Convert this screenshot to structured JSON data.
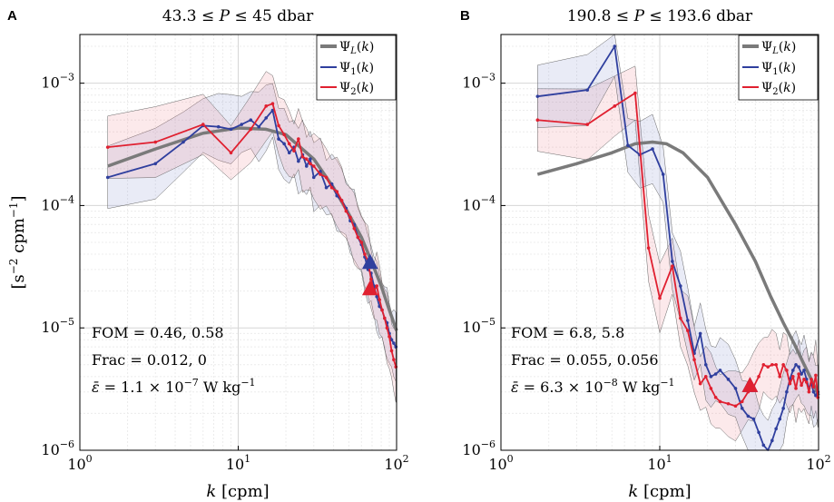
{
  "chart_data": [
    {
      "panel": "A",
      "type": "line",
      "title": "43.3 ≤ P ≤ 45 dbar",
      "xlabel": "k   [cpm]",
      "ylabel": "[s⁻² cpm⁻¹]",
      "xscale": "log",
      "yscale": "log",
      "xlim": [
        1,
        100
      ],
      "ylim": [
        1e-06,
        0.0025
      ],
      "x_ticks": [
        "10^0",
        "10^1",
        "10^2"
      ],
      "y_ticks": [
        "10^-6",
        "10^-5",
        "10^-4",
        "10^-3"
      ],
      "grid": true,
      "legend_position": "top-right",
      "legend": [
        "Ψ_L(k)",
        "Ψ_1(k)",
        "Ψ_2(k)"
      ],
      "annotations": [
        "FOM = 0.46,  0.58",
        "Frac = 0.012,  0",
        "ε̄ = 1.1 × 10^-7 W kg^-1"
      ],
      "series": [
        {
          "name": "Ψ_L(k)",
          "color": "#7a7a7a",
          "x": [
            1.5,
            3,
            6,
            10,
            15,
            20,
            30,
            40,
            50,
            60,
            70,
            80,
            90,
            100
          ],
          "y": [
            0.00021,
            0.00029,
            0.00039,
            0.00043,
            0.00042,
            0.00038,
            0.00024,
            0.00014,
            8.5e-05,
            5.5e-05,
            3.4e-05,
            2.2e-05,
            1.4e-05,
            9.5e-06
          ]
        },
        {
          "name": "Ψ_1(k)",
          "color": "#2f3f9e",
          "x": [
            1.5,
            3,
            4.5,
            6,
            7.5,
            9,
            10.5,
            12,
            13.5,
            15,
            16.5,
            18,
            19.5,
            21,
            22.5,
            24,
            25.5,
            27,
            28.5,
            30,
            33,
            36,
            39,
            42,
            45,
            48,
            51,
            54,
            57,
            60,
            63,
            66,
            69,
            72,
            75,
            78,
            81,
            84,
            87,
            90,
            93,
            96,
            99
          ],
          "y": [
            0.00017,
            0.00022,
            0.00033,
            0.00045,
            0.00044,
            0.00042,
            0.00046,
            0.0005,
            0.00044,
            0.00052,
            0.0006,
            0.00035,
            0.00032,
            0.00027,
            0.0003,
            0.00023,
            0.00026,
            0.00021,
            0.00024,
            0.00017,
            0.00019,
            0.00014,
            0.00015,
            0.00012,
            0.00011,
            9.5e-05,
            7.5e-05,
            7e-05,
            5.5e-05,
            4.8e-05,
            3.8e-05,
            3e-05,
            2.8e-05,
            2.2e-05,
            1.8e-05,
            1.5e-05,
            1.4e-05,
            1.2e-05,
            1.1e-05,
            9e-06,
            8e-06,
            7.5e-06,
            7e-06
          ]
        },
        {
          "name": "Ψ_2(k)",
          "color": "#e02030",
          "x": [
            1.5,
            3,
            6,
            9,
            12,
            15,
            16.5,
            18,
            19.5,
            21,
            22.5,
            24,
            25.5,
            27,
            28.5,
            30,
            33,
            36,
            39,
            42,
            45,
            48,
            51,
            54,
            57,
            60,
            63,
            66,
            69,
            72,
            75,
            78,
            81,
            84,
            87,
            90,
            93,
            96,
            99
          ],
          "y": [
            0.0003,
            0.00033,
            0.00046,
            0.00027,
            0.00042,
            0.00065,
            0.00068,
            0.00045,
            0.00038,
            0.00032,
            0.00028,
            0.00035,
            0.00025,
            0.00024,
            0.00022,
            0.00021,
            0.00018,
            0.00017,
            0.00014,
            0.00013,
            0.00011,
            9e-05,
            8e-05,
            6.5e-05,
            5.5e-05,
            5e-05,
            4e-05,
            3.5e-05,
            2.5e-05,
            2e-05,
            2.2e-05,
            1.7e-05,
            1.4e-05,
            1.2e-05,
            1e-05,
            8.5e-06,
            6.5e-06,
            5.5e-06,
            4.8e-06
          ]
        }
      ],
      "markers": [
        {
          "series": "Ψ_1(k)",
          "shape": "triangle",
          "x": 68,
          "y": 3.45e-05
        },
        {
          "series": "Ψ_2(k)",
          "shape": "triangle",
          "x": 68,
          "y": 2.1e-05
        }
      ]
    },
    {
      "panel": "B",
      "type": "line",
      "title": "190.8 ≤ P ≤ 193.6 dbar",
      "xlabel": "k   [cpm]",
      "ylabel": "",
      "xscale": "log",
      "yscale": "log",
      "xlim": [
        1,
        100
      ],
      "ylim": [
        1e-06,
        0.0025
      ],
      "x_ticks": [
        "10^0",
        "10^1",
        "10^2"
      ],
      "y_ticks": [
        "10^-6",
        "10^-5",
        "10^-4",
        "10^-3"
      ],
      "grid": true,
      "legend_position": "top-right",
      "legend": [
        "Ψ_L(k)",
        "Ψ_1(k)",
        "Ψ_2(k)"
      ],
      "annotations": [
        "FOM = 6.8,  5.8",
        "Frac = 0.055,  0.056",
        "ε̄ = 6.3 × 10^-8 W kg^-1"
      ],
      "series": [
        {
          "name": "Ψ_L(k)",
          "color": "#7a7a7a",
          "x": [
            1.7,
            3,
            5,
            7,
            9,
            11,
            14,
            20,
            30,
            40,
            50,
            60,
            70,
            80,
            90,
            100
          ],
          "y": [
            0.00018,
            0.00022,
            0.00027,
            0.00032,
            0.00033,
            0.00032,
            0.00027,
            0.00017,
            7e-05,
            3.5e-05,
            1.8e-05,
            1.1e-05,
            7.5e-06,
            5.2e-06,
            3.8e-06,
            2.8e-06
          ]
        },
        {
          "name": "Ψ_2(k)",
          "color": "#e02030",
          "x": [
            1.7,
            3.5,
            5.2,
            7,
            8.5,
            10,
            12,
            13.5,
            15,
            16.5,
            18,
            19.5,
            21,
            22.5,
            24,
            27,
            30,
            33,
            36,
            39,
            42,
            45,
            48,
            51,
            54,
            57,
            60,
            63,
            66,
            69,
            72,
            75,
            78,
            81,
            84,
            87,
            90,
            93,
            96,
            99
          ],
          "y": [
            0.0005,
            0.00046,
            0.00065,
            0.00083,
            4.5e-05,
            1.75e-05,
            3.2e-05,
            1.2e-05,
            9.5e-06,
            5.5e-06,
            3.5e-06,
            4e-06,
            3.2e-06,
            2.7e-06,
            2.5e-06,
            2.4e-06,
            2.3e-06,
            2.5e-06,
            3e-06,
            3.3e-06,
            4e-06,
            5e-06,
            4.8e-06,
            5e-06,
            5e-06,
            4e-06,
            5e-06,
            4.5e-06,
            3.5e-06,
            4e-06,
            3.2e-06,
            4.2e-06,
            3.4e-06,
            3.8e-06,
            3.6e-06,
            3e-06,
            3.8e-06,
            3.3e-06,
            4.1e-06,
            2.7e-06
          ]
        },
        {
          "name": "Ψ_1(k)",
          "color": "#2f3f9e",
          "x": [
            1.7,
            3.5,
            5.2,
            6.3,
            7.5,
            9,
            10.5,
            12,
            13.5,
            15,
            16.5,
            18,
            19.5,
            21,
            22.5,
            24,
            27,
            30,
            33,
            36,
            39,
            42,
            45,
            48,
            51,
            54,
            57,
            60,
            63,
            66,
            69,
            72,
            75,
            78,
            81,
            84,
            87,
            90,
            93,
            96,
            99
          ],
          "y": [
            0.00078,
            0.00088,
            0.002,
            0.00031,
            0.00026,
            0.00029,
            0.00018,
            3.5e-05,
            2.2e-05,
            1.15e-05,
            6.2e-06,
            9e-06,
            5e-06,
            4e-06,
            4.2e-06,
            4.5e-06,
            3.8e-06,
            3.2e-06,
            2.2e-06,
            1.9e-06,
            1.8e-06,
            1.4e-06,
            1.1e-06,
            9e-07,
            1.2e-06,
            1.5e-06,
            1.8e-06,
            2.2e-06,
            3e-06,
            3.8e-06,
            4.5e-06,
            5e-06,
            4.8e-06,
            4.2e-06,
            4.5e-06,
            3.8e-06,
            3.2e-06,
            3.5e-06,
            3e-06,
            2.8e-06,
            3e-06
          ]
        }
      ],
      "markers": [
        {
          "series": "Ψ_1(k)",
          "shape": "triangle",
          "x": 37,
          "y": 3.4e-06
        },
        {
          "series": "Ψ_2(k)",
          "shape": "triangle",
          "x": 37,
          "y": 3.4e-06
        }
      ]
    }
  ]
}
